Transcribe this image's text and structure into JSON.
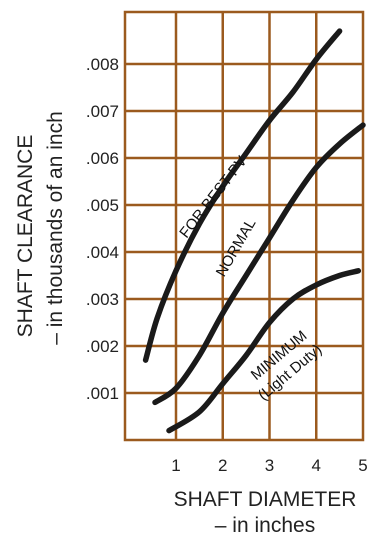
{
  "chart_data": {
    "type": "line",
    "xlabel": "SHAFT DIAMETER",
    "xlabel_sub": "– in inches",
    "ylabel": "SHAFT CLEARANCE",
    "ylabel_sub": "– in thousands of an inch",
    "x_ticks": [
      "1",
      "2",
      "3",
      "4",
      "5"
    ],
    "y_ticks": [
      ".001",
      ".002",
      ".003",
      ".004",
      ".005",
      ".006",
      ".007",
      ".008"
    ],
    "xlim": [
      0.35,
      5.15
    ],
    "ylim": [
      0,
      0.0088
    ],
    "grid": true,
    "grid_color": "#9b5a1e",
    "line_color": "#1a1a1a",
    "series": [
      {
        "name": "FOR BEST PV",
        "x": [
          0.35,
          0.6,
          1.0,
          1.5,
          2.0,
          2.5,
          3.0,
          3.5,
          4.0,
          4.5
        ],
        "y": [
          0.0017,
          0.0026,
          0.0036,
          0.0046,
          0.0054,
          0.0061,
          0.0068,
          0.0074,
          0.0081,
          0.0087
        ]
      },
      {
        "name": "NORMAL",
        "x": [
          0.55,
          1.0,
          1.5,
          2.0,
          2.5,
          3.0,
          3.5,
          4.0,
          4.5,
          5.0
        ],
        "y": [
          0.0008,
          0.0011,
          0.0018,
          0.0027,
          0.0035,
          0.0043,
          0.0051,
          0.0058,
          0.0063,
          0.0067
        ]
      },
      {
        "name": "MINIMUM (Light Duty)",
        "label_line1": "MINIMUM",
        "label_line2": "(Light Duty)",
        "x": [
          0.85,
          1.5,
          2.0,
          2.5,
          3.0,
          3.5,
          4.0,
          4.5,
          4.9
        ],
        "y": [
          0.0002,
          0.0006,
          0.0012,
          0.0018,
          0.0025,
          0.003,
          0.0033,
          0.0035,
          0.0036
        ]
      }
    ]
  }
}
